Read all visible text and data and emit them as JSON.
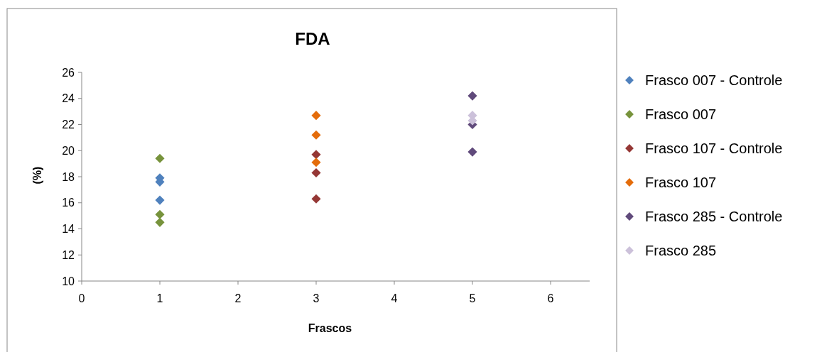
{
  "chart_data": {
    "type": "scatter",
    "title": "FDA",
    "xlabel": "Frascos",
    "ylabel": "(%)",
    "xlim": [
      0,
      6.5
    ],
    "xticks": [
      0,
      1,
      2,
      3,
      4,
      5,
      6
    ],
    "ylim": [
      10,
      26
    ],
    "yticks": [
      10,
      12,
      14,
      16,
      18,
      20,
      22,
      24,
      26
    ],
    "grid": false,
    "legend": "right",
    "marker": "diamond",
    "series": [
      {
        "name": "Frasco 007 - Controle",
        "color": "#4f81bd",
        "x": [
          1,
          1,
          1
        ],
        "values": [
          17.9,
          17.6,
          16.2
        ]
      },
      {
        "name": "Frasco 007",
        "color": "#77933c",
        "x": [
          1,
          1,
          1
        ],
        "values": [
          19.4,
          15.1,
          14.5
        ]
      },
      {
        "name": "Frasco 107 - Controle",
        "color": "#953735",
        "x": [
          3,
          3,
          3
        ],
        "values": [
          19.7,
          18.3,
          16.3
        ]
      },
      {
        "name": "Frasco 107",
        "color": "#e46c0a",
        "x": [
          3,
          3,
          3
        ],
        "values": [
          22.7,
          21.2,
          19.1
        ]
      },
      {
        "name": "Frasco 285 - Controle",
        "color": "#604a7b",
        "x": [
          5,
          5,
          5
        ],
        "values": [
          24.2,
          22.0,
          19.9
        ]
      },
      {
        "name": "Frasco 285",
        "color": "#ccc1da",
        "x": [
          5,
          5
        ],
        "values": [
          22.7,
          22.3
        ]
      }
    ]
  }
}
